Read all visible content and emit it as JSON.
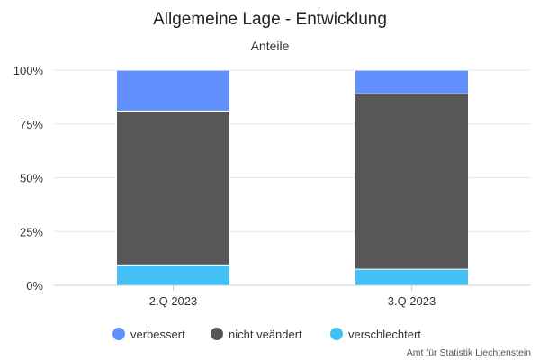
{
  "chart_data": {
    "type": "bar",
    "stacked": true,
    "percent": true,
    "title": "Allgemeine Lage - Entwicklung",
    "subtitle": "Anteile",
    "xlabel": "",
    "ylabel": "",
    "categories": [
      "2.Q 2023",
      "3.Q 2023"
    ],
    "series": [
      {
        "name": "verbessert",
        "values": [
          19,
          11
        ],
        "color": "#6190fd"
      },
      {
        "name": "nicht veändert",
        "values": [
          71.5,
          81.5
        ],
        "color": "#575757"
      },
      {
        "name": "verschlechtert",
        "values": [
          9.5,
          7.5
        ],
        "color": "#43c0f5"
      }
    ],
    "ylim": [
      0,
      100
    ],
    "y_ticks": [
      "0%",
      "25%",
      "50%",
      "75%",
      "100%"
    ],
    "grid": true,
    "legend": "bottom-center",
    "credits": "Amt für Statistik Liechtenstein"
  }
}
